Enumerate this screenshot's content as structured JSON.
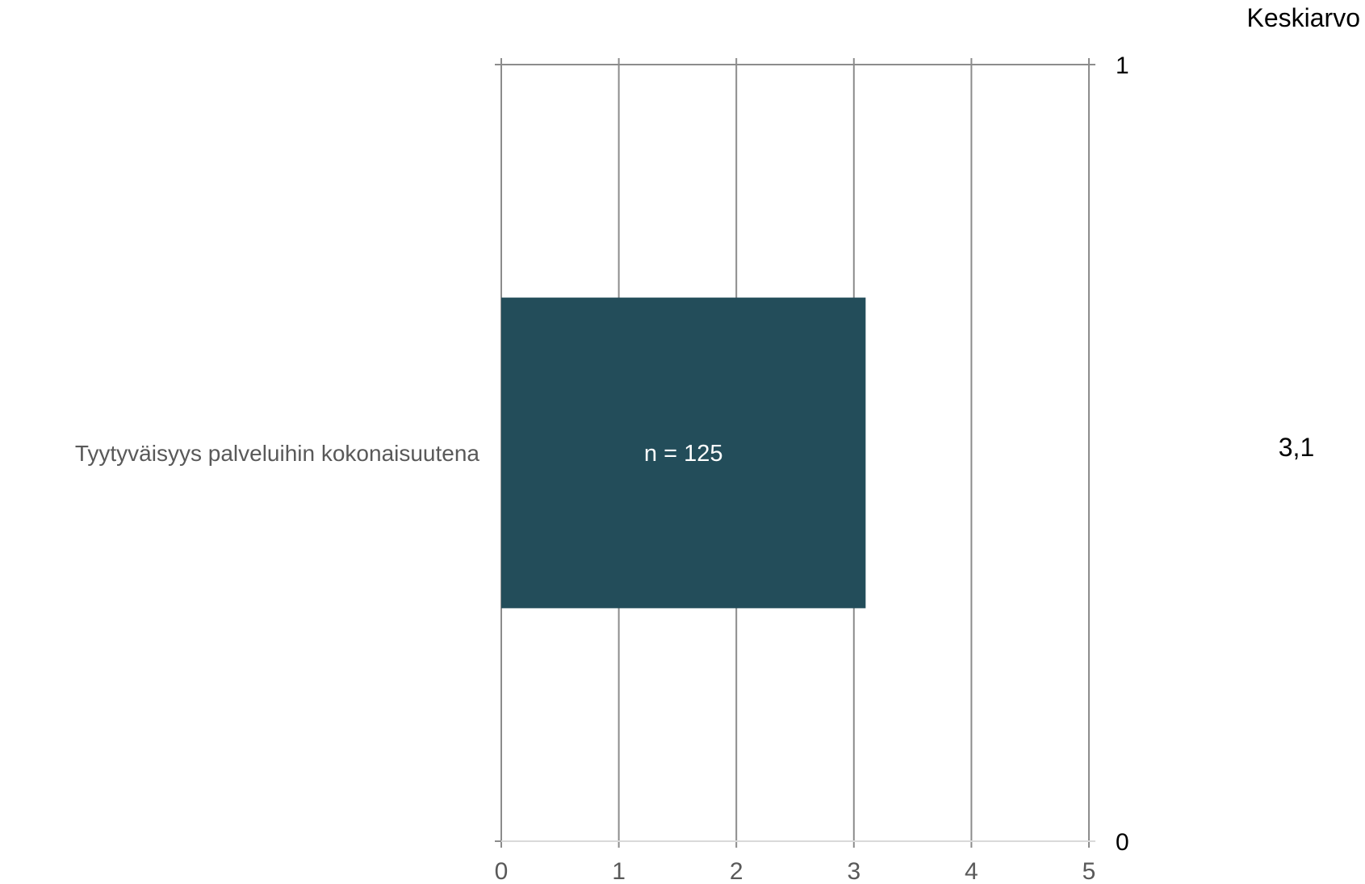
{
  "chart_data": {
    "type": "bar",
    "orientation": "horizontal",
    "categories": [
      "Tyytyväisyys palveluihin kokonaisuutena"
    ],
    "values": [
      3.1
    ],
    "bar_labels": [
      "n = 125"
    ],
    "xlim": [
      0,
      5
    ],
    "x_ticks": [
      "0",
      "1",
      "2",
      "3",
      "4",
      "5"
    ],
    "secondary_axis": {
      "ticks": [
        "0",
        "1"
      ]
    },
    "average": {
      "header": "Keskiarvo",
      "values": [
        "3,1"
      ]
    },
    "grid": true,
    "colors": {
      "bar": "#234d5a",
      "grid": "#8c8c8c",
      "axis": "#d9d9d9"
    }
  }
}
